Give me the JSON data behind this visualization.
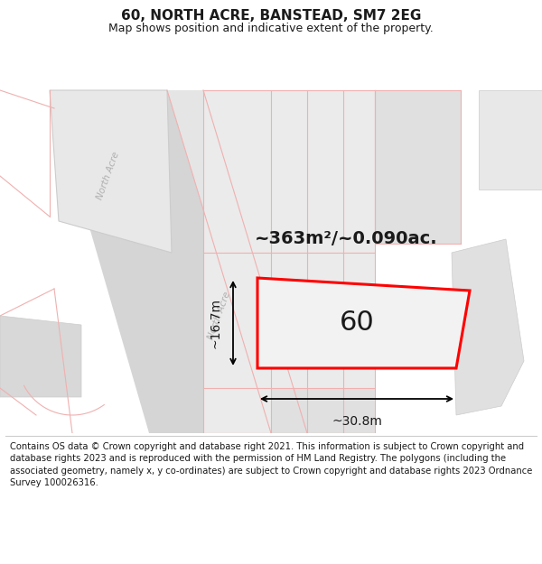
{
  "title": "60, NORTH ACRE, BANSTEAD, SM7 2EG",
  "subtitle": "Map shows position and indicative extent of the property.",
  "footer": "Contains OS data © Crown copyright and database right 2021. This information is subject to Crown copyright and database rights 2023 and is reproduced with the permission of HM Land Registry. The polygons (including the associated geometry, namely x, y co-ordinates) are subject to Crown copyright and database rights 2023 Ordnance Survey 100026316.",
  "background_color": "#ffffff",
  "area_label": "~363m²/~0.090ac.",
  "plot_number": "60",
  "dim_width": "~30.8m",
  "dim_height": "~16.7m",
  "road_label": "North Acre",
  "plot_color": "#ff0000",
  "light_red": "#f0b0b0",
  "gray_block": "#d8d8d8",
  "gray_light": "#e8e8e8",
  "road_gray": "#d0d0d0"
}
